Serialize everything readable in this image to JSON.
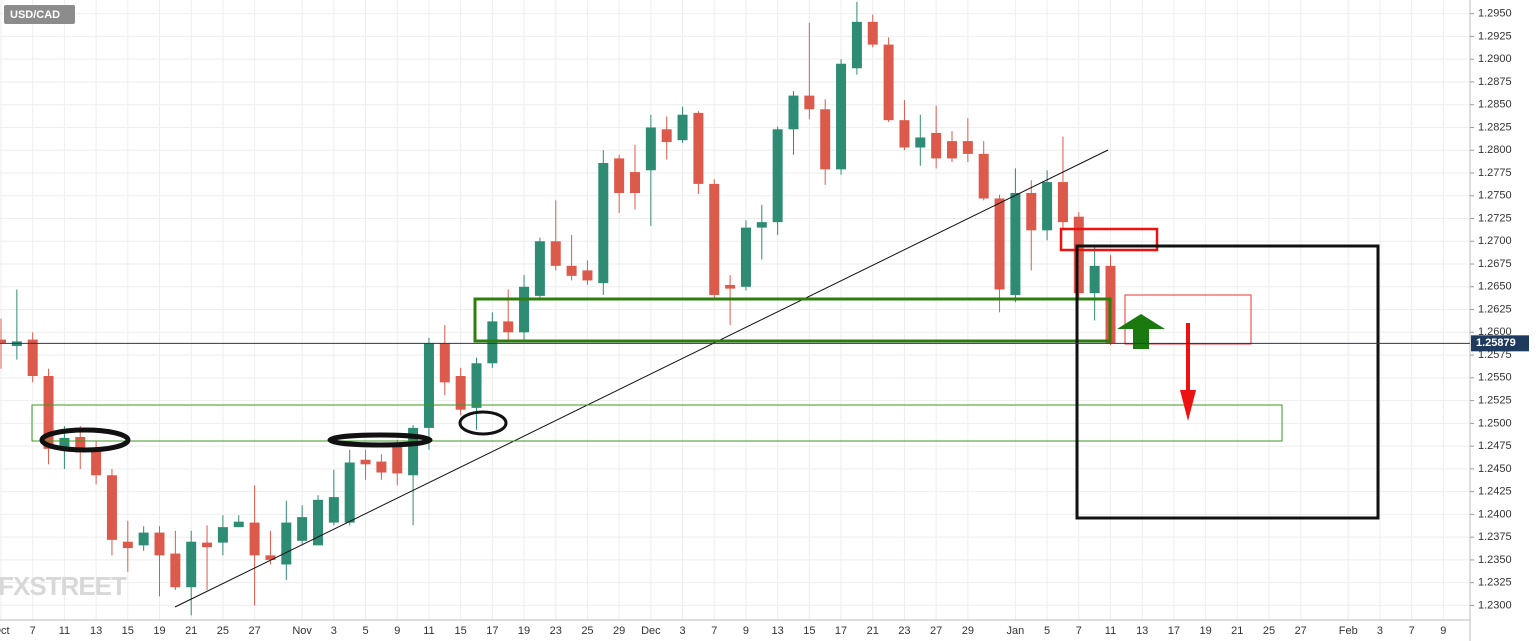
{
  "chart_data": {
    "type": "candlestick",
    "title": "USD/CAD",
    "watermark": "FXSTREET",
    "categories": [
      "Oct",
      null,
      "7",
      null,
      "11",
      null,
      "13",
      null,
      "15",
      null,
      "19",
      null,
      "21",
      null,
      "25",
      null,
      "27",
      null,
      null,
      "Nov",
      null,
      "3",
      null,
      "5",
      null,
      "9",
      null,
      "11",
      null,
      "15",
      null,
      "17",
      null,
      "19",
      null,
      "23",
      null,
      "25",
      null,
      "29",
      null,
      "Dec",
      null,
      "3",
      null,
      "7",
      null,
      "9",
      null,
      "13",
      null,
      "15",
      null,
      "17",
      null,
      "21",
      null,
      "23",
      null,
      "27",
      null,
      "29",
      null,
      null,
      "Jan",
      null,
      "5",
      null,
      "7",
      null,
      "11",
      null,
      "13",
      null,
      "17",
      null,
      "19",
      null,
      "21",
      null,
      "25",
      null,
      "27",
      null,
      null,
      "Feb",
      null,
      "3",
      null,
      "7",
      null,
      "9",
      null
    ],
    "open": [
      1.2592,
      1.2585,
      1.2592,
      1.2552,
      1.2472,
      1.2485,
      1.247,
      1.2443,
      1.237,
      1.2366,
      1.238,
      1.2357,
      1.232,
      1.2369,
      1.2369,
      1.2386,
      1.2391,
      1.2355,
      1.2345,
      1.2371,
      1.2366,
      1.2391,
      1.2391,
      1.246,
      1.2458,
      1.2476,
      1.2443,
      1.2495,
      1.2588,
      1.2552,
      1.2517,
      1.2566,
      1.2612,
      1.26,
      1.264,
      1.27,
      1.2673,
      1.2668,
      1.2654,
      1.2791,
      1.2776,
      1.2778,
      1.2823,
      1.2811,
      1.2841,
      1.2763,
      1.2652,
      1.265,
      1.2715,
      1.2721,
      1.2823,
      1.286,
      1.2845,
      1.2779,
      1.289,
      1.2941,
      1.2916,
      1.2833,
      1.2803,
      1.2819,
      1.281,
      1.281,
      1.2796,
      1.2747,
      1.2641,
      1.2753,
      1.2712,
      1.2765,
      1.2727,
      1.2643,
      1.2673,
      null,
      null,
      null,
      null,
      null,
      null,
      null,
      null,
      null,
      null,
      null,
      null,
      null,
      null,
      null,
      null,
      null,
      null,
      null,
      null,
      null,
      null
    ],
    "high": [
      1.2615,
      1.2647,
      1.26,
      1.256,
      1.2497,
      1.2497,
      1.248,
      1.245,
      1.2393,
      1.2387,
      1.2387,
      1.2382,
      1.2382,
      1.2388,
      1.2399,
      1.2399,
      1.2432,
      1.2382,
      1.2415,
      1.241,
      1.2421,
      1.2449,
      1.2471,
      1.2471,
      1.2466,
      1.2482,
      1.2498,
      1.2594,
      1.2608,
      1.2561,
      1.2572,
      1.2622,
      1.2647,
      1.2663,
      1.2704,
      1.2745,
      1.2707,
      1.2679,
      1.28,
      1.2795,
      1.2806,
      1.2839,
      1.2837,
      1.2848,
      1.2843,
      1.2768,
      1.2663,
      1.2723,
      1.274,
      1.2826,
      1.2865,
      1.294,
      1.2856,
      1.29,
      1.2963,
      1.2949,
      1.2924,
      1.2855,
      1.2839,
      1.2849,
      1.2821,
      1.2835,
      1.281,
      1.2751,
      1.278,
      1.2767,
      1.2778,
      1.2815,
      1.2732,
      1.2695,
      1.2685,
      null,
      null,
      null,
      null,
      null,
      null,
      null,
      null,
      null,
      null,
      null,
      null,
      null,
      null,
      null,
      null,
      null,
      null,
      null,
      null,
      null,
      null
    ],
    "low": [
      1.256,
      1.257,
      1.2545,
      1.2455,
      1.245,
      1.245,
      1.2433,
      1.2355,
      1.2337,
      1.236,
      1.231,
      1.2317,
      1.2289,
      1.2317,
      1.2355,
      1.2386,
      1.23,
      1.2345,
      1.2328,
      1.2366,
      1.2366,
      1.2388,
      1.2388,
      1.2438,
      1.2438,
      1.2432,
      1.2388,
      1.2471,
      1.2531,
      1.2509,
      1.2493,
      1.2561,
      1.2591,
      1.2591,
      1.2635,
      1.2668,
      1.2657,
      1.2652,
      1.2641,
      1.2731,
      1.2735,
      1.2717,
      1.279,
      1.2808,
      1.2752,
      1.2638,
      1.2608,
      1.2646,
      1.268,
      1.2707,
      1.2795,
      1.2834,
      1.2762,
      1.2773,
      1.2883,
      1.2913,
      1.2831,
      1.28,
      1.2783,
      1.278,
      1.2787,
      1.2787,
      1.2745,
      1.2622,
      1.2633,
      1.2668,
      1.2701,
      1.2712,
      1.2635,
      1.2613,
      1.2586,
      null,
      null,
      null,
      null,
      null,
      null,
      null,
      null,
      null,
      null,
      null,
      null,
      null,
      null,
      null,
      null,
      null,
      null,
      null,
      null,
      null,
      null
    ],
    "close": [
      1.2588,
      1.259,
      1.2552,
      1.2472,
      1.2484,
      1.2468,
      1.2443,
      1.2372,
      1.2363,
      1.238,
      1.2355,
      1.232,
      1.237,
      1.2364,
      1.2386,
      1.2392,
      1.2355,
      1.235,
      1.2391,
      1.2397,
      1.2416,
      1.2419,
      1.2457,
      1.2455,
      1.2446,
      1.2445,
      1.2495,
      1.2588,
      1.2545,
      1.2515,
      1.2566,
      1.2612,
      1.26,
      1.265,
      1.27,
      1.2673,
      1.2662,
      1.2657,
      1.2786,
      1.2753,
      1.2753,
      1.2825,
      1.2809,
      1.2839,
      1.2763,
      1.2641,
      1.2648,
      1.2715,
      1.2721,
      1.2823,
      1.286,
      1.2845,
      1.2779,
      1.2895,
      1.2941,
      1.2916,
      1.2833,
      1.2803,
      1.2814,
      1.2791,
      1.2791,
      1.2796,
      1.2747,
      1.2647,
      1.2753,
      1.2712,
      1.2765,
      1.2721,
      1.2643,
      1.2673,
      1.25879,
      null,
      null,
      null,
      null,
      null,
      null,
      null,
      null,
      null,
      null,
      null,
      null,
      null,
      null,
      null,
      null,
      null,
      null,
      null,
      null,
      null,
      null
    ],
    "up_color": "#2e8b74",
    "down_color": "#dc5a4b",
    "ylim": [
      1.2284,
      1.2965
    ],
    "yticks": [
      {
        "value": 1.23,
        "label": "1.2300"
      },
      1.2325,
      {
        "value": 1.235,
        "label": "1.2350"
      },
      1.2375,
      {
        "value": 1.24,
        "label": "1.2400"
      },
      1.2425,
      {
        "value": 1.245,
        "label": "1.2450"
      },
      1.2475,
      {
        "value": 1.25,
        "label": "1.2500"
      },
      1.2525,
      {
        "value": 1.255,
        "label": "1.2550"
      },
      1.2575,
      {
        "value": 1.26,
        "label": "1.2600"
      },
      1.2625,
      {
        "value": 1.265,
        "label": "1.2650"
      },
      1.2675,
      {
        "value": 1.27,
        "label": "1.2700"
      },
      1.2725,
      {
        "value": 1.275,
        "label": "1.2750"
      },
      1.2775,
      {
        "value": 1.28,
        "label": "1.2800"
      },
      1.2825,
      {
        "value": 1.285,
        "label": "1.2850"
      },
      1.2875,
      {
        "value": 1.29,
        "label": "1.2900"
      },
      1.2925,
      {
        "value": 1.295,
        "label": "1.2950"
      }
    ],
    "grid": true,
    "last_price": {
      "value": 1.25879,
      "label": "1.25879"
    },
    "last_price_color": "#1f3a5f"
  }
}
